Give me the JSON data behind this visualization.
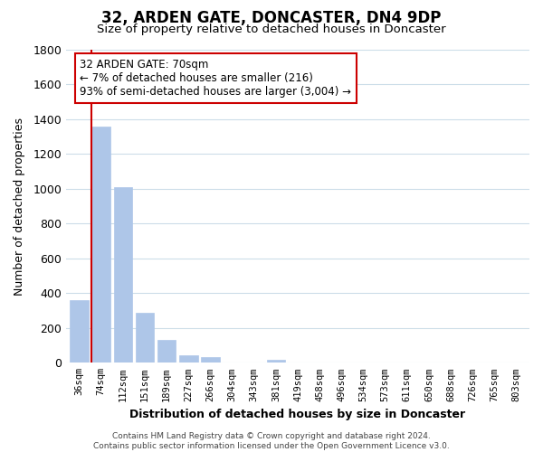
{
  "title": "32, ARDEN GATE, DONCASTER, DN4 9DP",
  "subtitle": "Size of property relative to detached houses in Doncaster",
  "xlabel": "Distribution of detached houses by size in Doncaster",
  "ylabel": "Number of detached properties",
  "bar_values": [
    360,
    1360,
    1010,
    290,
    130,
    42,
    35,
    0,
    0,
    17,
    0,
    0,
    0,
    0,
    0,
    0,
    0,
    0,
    0,
    0,
    0
  ],
  "bar_labels": [
    "36sqm",
    "74sqm",
    "112sqm",
    "151sqm",
    "189sqm",
    "227sqm",
    "266sqm",
    "304sqm",
    "343sqm",
    "381sqm",
    "419sqm",
    "458sqm",
    "496sqm",
    "534sqm",
    "573sqm",
    "611sqm",
    "650sqm",
    "688sqm",
    "726sqm",
    "765sqm",
    "803sqm"
  ],
  "bar_color": "#aec6e8",
  "marker_color": "#cc0000",
  "ylim": [
    0,
    1800
  ],
  "yticks": [
    0,
    200,
    400,
    600,
    800,
    1000,
    1200,
    1400,
    1600,
    1800
  ],
  "annotation_title": "32 ARDEN GATE: 70sqm",
  "annotation_line1": "← 7% of detached houses are smaller (216)",
  "annotation_line2": "93% of semi-detached houses are larger (3,004) →",
  "annotation_box_color": "#ffffff",
  "annotation_box_edgecolor": "#cc0000",
  "footer_line1": "Contains HM Land Registry data © Crown copyright and database right 2024.",
  "footer_line2": "Contains public sector information licensed under the Open Government Licence v3.0.",
  "background_color": "#ffffff",
  "grid_color": "#ccdde8"
}
